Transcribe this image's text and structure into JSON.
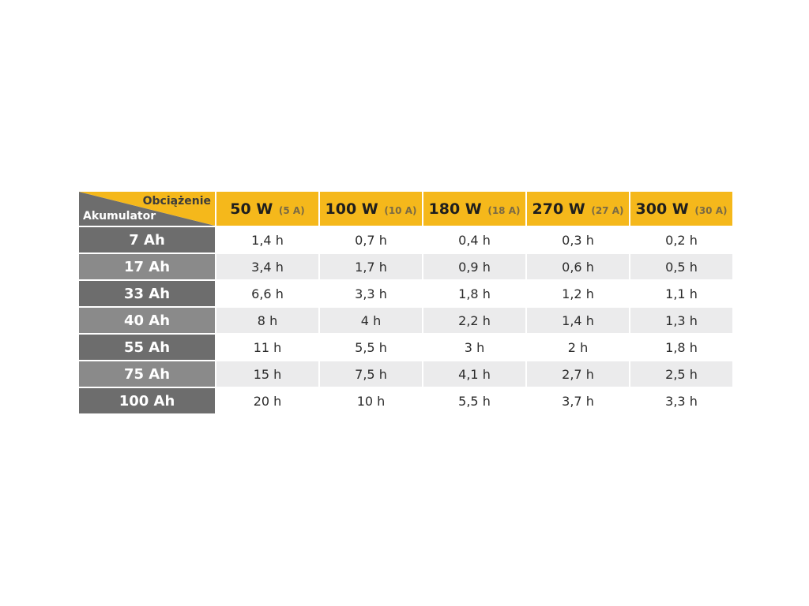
{
  "table": {
    "corner": {
      "load_label": "Obciążenie",
      "accumulator_label": "Akumulator"
    },
    "columns": [
      {
        "power": "50 W",
        "current": "(5 A)"
      },
      {
        "power": "100 W",
        "current": "(10 A)"
      },
      {
        "power": "180 W",
        "current": "(18 A)"
      },
      {
        "power": "270 W",
        "current": "(27 A)"
      },
      {
        "power": "300 W",
        "current": "(30 A)"
      }
    ],
    "rows": [
      {
        "capacity": "7 Ah",
        "values": [
          "1,4 h",
          "0,7 h",
          "0,4 h",
          "0,3 h",
          "0,2 h"
        ]
      },
      {
        "capacity": "17 Ah",
        "values": [
          "3,4 h",
          "1,7 h",
          "0,9 h",
          "0,6 h",
          "0,5 h"
        ]
      },
      {
        "capacity": "33 Ah",
        "values": [
          "6,6 h",
          "3,3 h",
          "1,8 h",
          "1,2 h",
          "1,1 h"
        ]
      },
      {
        "capacity": "40 Ah",
        "values": [
          "8 h",
          "4 h",
          "2,2 h",
          "1,4 h",
          "1,3 h"
        ]
      },
      {
        "capacity": "55 Ah",
        "values": [
          "11 h",
          "5,5 h",
          "3 h",
          "2 h",
          "1,8 h"
        ]
      },
      {
        "capacity": "75 Ah",
        "values": [
          "15 h",
          "7,5 h",
          "4,1 h",
          "2,7 h",
          "2,5 h"
        ]
      },
      {
        "capacity": "100 Ah",
        "values": [
          "20 h",
          "10 h",
          "5,5 h",
          "3,7 h",
          "3,3 h"
        ]
      }
    ]
  },
  "colors": {
    "header_yellow": "#f5b81b",
    "row_header_dark": "#6d6d6d",
    "row_header_light": "#8a8a8a",
    "stripe_gray": "#ebebec"
  }
}
